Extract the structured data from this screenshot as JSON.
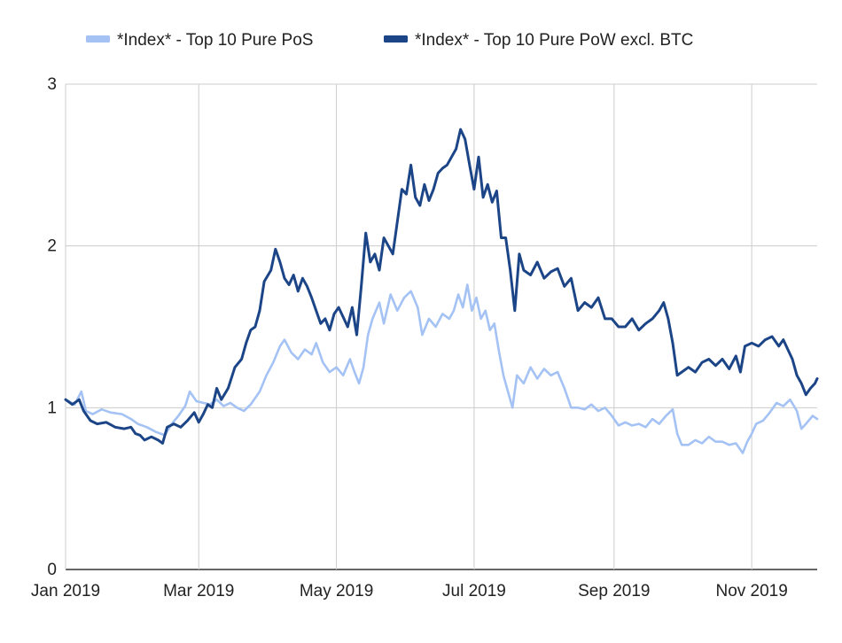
{
  "chart_data": {
    "type": "line",
    "title": "",
    "xlabel": "",
    "ylabel": "",
    "ylim": [
      0,
      3
    ],
    "y_ticks": [
      0,
      1,
      2,
      3
    ],
    "x_ticks": [
      {
        "label": "Jan 2019",
        "day": 0
      },
      {
        "label": "Mar 2019",
        "day": 59
      },
      {
        "label": "May 2019",
        "day": 120
      },
      {
        "label": "Jul 2019",
        "day": 181
      },
      {
        "label": "Sep 2019",
        "day": 243
      },
      {
        "label": "Nov 2019",
        "day": 304
      }
    ],
    "x_max_day": 333,
    "grid": true,
    "legend_position": "top",
    "series": [
      {
        "name": "*Index* - Top 10 Pure PoS",
        "color": "#a4c2f4",
        "points": [
          [
            0,
            1.05
          ],
          [
            4,
            1.02
          ],
          [
            7,
            1.1
          ],
          [
            9,
            0.98
          ],
          [
            12,
            0.96
          ],
          [
            16,
            0.99
          ],
          [
            20,
            0.97
          ],
          [
            25,
            0.96
          ],
          [
            29,
            0.93
          ],
          [
            32,
            0.9
          ],
          [
            36,
            0.88
          ],
          [
            40,
            0.85
          ],
          [
            44,
            0.83
          ],
          [
            47,
            0.9
          ],
          [
            50,
            0.95
          ],
          [
            53,
            1.01
          ],
          [
            55,
            1.1
          ],
          [
            58,
            1.04
          ],
          [
            61,
            1.03
          ],
          [
            64,
            1.02
          ],
          [
            67,
            1.05
          ],
          [
            70,
            1.01
          ],
          [
            73,
            1.03
          ],
          [
            76,
            1.0
          ],
          [
            79,
            0.98
          ],
          [
            82,
            1.02
          ],
          [
            86,
            1.1
          ],
          [
            89,
            1.2
          ],
          [
            92,
            1.28
          ],
          [
            95,
            1.38
          ],
          [
            97,
            1.42
          ],
          [
            100,
            1.34
          ],
          [
            103,
            1.3
          ],
          [
            106,
            1.36
          ],
          [
            109,
            1.33
          ],
          [
            111,
            1.4
          ],
          [
            114,
            1.28
          ],
          [
            117,
            1.22
          ],
          [
            120,
            1.25
          ],
          [
            123,
            1.2
          ],
          [
            126,
            1.3
          ],
          [
            128,
            1.22
          ],
          [
            130,
            1.15
          ],
          [
            132,
            1.25
          ],
          [
            134,
            1.45
          ],
          [
            136,
            1.55
          ],
          [
            139,
            1.65
          ],
          [
            141,
            1.52
          ],
          [
            144,
            1.7
          ],
          [
            147,
            1.6
          ],
          [
            150,
            1.68
          ],
          [
            153,
            1.72
          ],
          [
            156,
            1.62
          ],
          [
            158,
            1.45
          ],
          [
            161,
            1.55
          ],
          [
            164,
            1.5
          ],
          [
            167,
            1.58
          ],
          [
            170,
            1.55
          ],
          [
            172,
            1.6
          ],
          [
            174,
            1.7
          ],
          [
            176,
            1.62
          ],
          [
            178,
            1.76
          ],
          [
            180,
            1.6
          ],
          [
            182,
            1.68
          ],
          [
            184,
            1.55
          ],
          [
            186,
            1.6
          ],
          [
            188,
            1.48
          ],
          [
            190,
            1.52
          ],
          [
            192,
            1.35
          ],
          [
            194,
            1.2
          ],
          [
            196,
            1.1
          ],
          [
            198,
            1.0
          ],
          [
            200,
            1.2
          ],
          [
            203,
            1.15
          ],
          [
            206,
            1.25
          ],
          [
            209,
            1.18
          ],
          [
            212,
            1.24
          ],
          [
            215,
            1.2
          ],
          [
            218,
            1.22
          ],
          [
            221,
            1.12
          ],
          [
            224,
            1.0
          ],
          [
            227,
            1.0
          ],
          [
            230,
            0.99
          ],
          [
            233,
            1.02
          ],
          [
            236,
            0.98
          ],
          [
            239,
            1.0
          ],
          [
            242,
            0.95
          ],
          [
            245,
            0.89
          ],
          [
            248,
            0.91
          ],
          [
            251,
            0.89
          ],
          [
            254,
            0.9
          ],
          [
            257,
            0.88
          ],
          [
            260,
            0.93
          ],
          [
            263,
            0.9
          ],
          [
            266,
            0.95
          ],
          [
            269,
            0.99
          ],
          [
            271,
            0.84
          ],
          [
            273,
            0.77
          ],
          [
            276,
            0.77
          ],
          [
            279,
            0.8
          ],
          [
            282,
            0.78
          ],
          [
            285,
            0.82
          ],
          [
            288,
            0.79
          ],
          [
            291,
            0.79
          ],
          [
            294,
            0.77
          ],
          [
            297,
            0.78
          ],
          [
            300,
            0.72
          ],
          [
            302,
            0.79
          ],
          [
            304,
            0.84
          ],
          [
            306,
            0.9
          ],
          [
            309,
            0.92
          ],
          [
            312,
            0.97
          ],
          [
            315,
            1.03
          ],
          [
            318,
            1.01
          ],
          [
            321,
            1.05
          ],
          [
            324,
            0.98
          ],
          [
            326,
            0.87
          ],
          [
            328,
            0.9
          ],
          [
            331,
            0.95
          ],
          [
            333,
            0.93
          ]
        ]
      },
      {
        "name": "*Index* - Top 10 Pure PoW excl. BTC",
        "color": "#1c4587",
        "points": [
          [
            0,
            1.05
          ],
          [
            3,
            1.02
          ],
          [
            6,
            1.05
          ],
          [
            8,
            0.98
          ],
          [
            11,
            0.92
          ],
          [
            14,
            0.9
          ],
          [
            18,
            0.91
          ],
          [
            22,
            0.88
          ],
          [
            26,
            0.87
          ],
          [
            29,
            0.88
          ],
          [
            31,
            0.84
          ],
          [
            33,
            0.83
          ],
          [
            35,
            0.8
          ],
          [
            38,
            0.82
          ],
          [
            41,
            0.8
          ],
          [
            43,
            0.78
          ],
          [
            45,
            0.88
          ],
          [
            48,
            0.9
          ],
          [
            51,
            0.88
          ],
          [
            54,
            0.92
          ],
          [
            57,
            0.97
          ],
          [
            59,
            0.91
          ],
          [
            61,
            0.96
          ],
          [
            63,
            1.02
          ],
          [
            65,
            1.0
          ],
          [
            67,
            1.12
          ],
          [
            69,
            1.05
          ],
          [
            72,
            1.12
          ],
          [
            75,
            1.25
          ],
          [
            78,
            1.3
          ],
          [
            80,
            1.4
          ],
          [
            82,
            1.48
          ],
          [
            84,
            1.5
          ],
          [
            86,
            1.6
          ],
          [
            88,
            1.78
          ],
          [
            91,
            1.85
          ],
          [
            93,
            1.98
          ],
          [
            95,
            1.9
          ],
          [
            97,
            1.8
          ],
          [
            99,
            1.76
          ],
          [
            101,
            1.82
          ],
          [
            103,
            1.72
          ],
          [
            105,
            1.8
          ],
          [
            107,
            1.75
          ],
          [
            109,
            1.68
          ],
          [
            111,
            1.6
          ],
          [
            113,
            1.52
          ],
          [
            115,
            1.55
          ],
          [
            117,
            1.48
          ],
          [
            119,
            1.58
          ],
          [
            121,
            1.62
          ],
          [
            123,
            1.56
          ],
          [
            125,
            1.5
          ],
          [
            127,
            1.62
          ],
          [
            129,
            1.45
          ],
          [
            131,
            1.75
          ],
          [
            133,
            2.08
          ],
          [
            135,
            1.9
          ],
          [
            137,
            1.95
          ],
          [
            139,
            1.85
          ],
          [
            141,
            2.05
          ],
          [
            143,
            2.0
          ],
          [
            145,
            1.95
          ],
          [
            147,
            2.15
          ],
          [
            149,
            2.35
          ],
          [
            151,
            2.32
          ],
          [
            153,
            2.5
          ],
          [
            155,
            2.3
          ],
          [
            157,
            2.25
          ],
          [
            159,
            2.38
          ],
          [
            161,
            2.28
          ],
          [
            163,
            2.35
          ],
          [
            165,
            2.45
          ],
          [
            167,
            2.48
          ],
          [
            169,
            2.5
          ],
          [
            171,
            2.55
          ],
          [
            173,
            2.6
          ],
          [
            175,
            2.72
          ],
          [
            177,
            2.66
          ],
          [
            179,
            2.5
          ],
          [
            181,
            2.35
          ],
          [
            183,
            2.55
          ],
          [
            185,
            2.3
          ],
          [
            187,
            2.38
          ],
          [
            189,
            2.27
          ],
          [
            191,
            2.34
          ],
          [
            193,
            2.05
          ],
          [
            195,
            2.05
          ],
          [
            197,
            1.85
          ],
          [
            199,
            1.6
          ],
          [
            201,
            1.95
          ],
          [
            203,
            1.85
          ],
          [
            206,
            1.82
          ],
          [
            209,
            1.9
          ],
          [
            212,
            1.8
          ],
          [
            215,
            1.84
          ],
          [
            218,
            1.86
          ],
          [
            221,
            1.75
          ],
          [
            224,
            1.8
          ],
          [
            227,
            1.6
          ],
          [
            230,
            1.65
          ],
          [
            233,
            1.62
          ],
          [
            236,
            1.68
          ],
          [
            239,
            1.55
          ],
          [
            242,
            1.55
          ],
          [
            245,
            1.5
          ],
          [
            248,
            1.5
          ],
          [
            251,
            1.55
          ],
          [
            254,
            1.48
          ],
          [
            257,
            1.52
          ],
          [
            260,
            1.55
          ],
          [
            263,
            1.6
          ],
          [
            265,
            1.65
          ],
          [
            267,
            1.55
          ],
          [
            269,
            1.4
          ],
          [
            271,
            1.2
          ],
          [
            273,
            1.22
          ],
          [
            276,
            1.25
          ],
          [
            279,
            1.22
          ],
          [
            282,
            1.28
          ],
          [
            285,
            1.3
          ],
          [
            288,
            1.26
          ],
          [
            291,
            1.3
          ],
          [
            294,
            1.24
          ],
          [
            297,
            1.32
          ],
          [
            299,
            1.22
          ],
          [
            301,
            1.38
          ],
          [
            304,
            1.4
          ],
          [
            307,
            1.38
          ],
          [
            310,
            1.42
          ],
          [
            313,
            1.44
          ],
          [
            316,
            1.38
          ],
          [
            318,
            1.42
          ],
          [
            320,
            1.36
          ],
          [
            322,
            1.3
          ],
          [
            324,
            1.2
          ],
          [
            326,
            1.15
          ],
          [
            328,
            1.08
          ],
          [
            330,
            1.12
          ],
          [
            332,
            1.15
          ],
          [
            333,
            1.18
          ]
        ]
      }
    ]
  }
}
